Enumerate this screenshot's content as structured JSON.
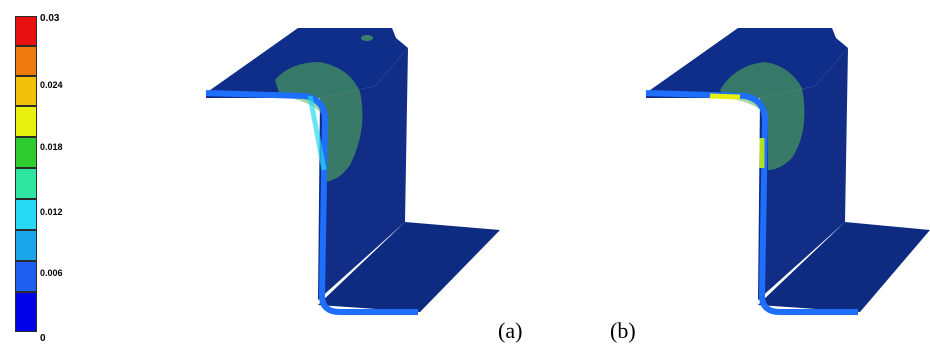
{
  "legend": {
    "colors": [
      "#0000e8",
      "#1f5ff0",
      "#1aa6e8",
      "#27d9f2",
      "#2ee6a0",
      "#2ecc2e",
      "#e8f00f",
      "#f2c20a",
      "#ef7a10",
      "#e81010"
    ],
    "ticks": [
      "0.03",
      "0.024",
      "0.018",
      "0.012",
      "0.006",
      "0"
    ]
  },
  "captions": {
    "a": "(a)",
    "b": "(b)"
  },
  "figure_colors": {
    "part": "#0f2e8a",
    "edge": "#1f6fff",
    "hotspot": "#59b84f"
  }
}
